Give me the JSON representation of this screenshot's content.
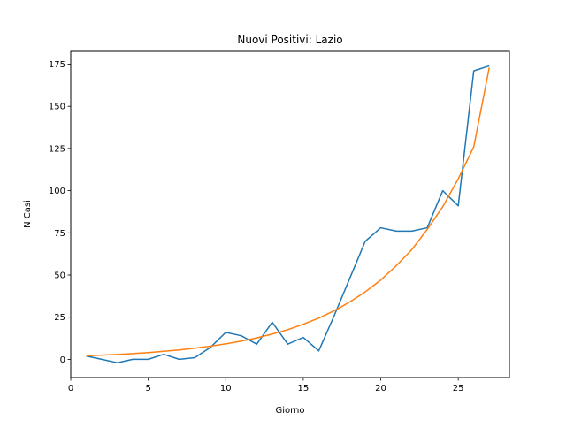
{
  "chart_data": {
    "type": "line",
    "title": "Nuovi Positivi: Lazio",
    "xlabel": "Giorno",
    "ylabel": "N Casi",
    "xlim": [
      0,
      28.3
    ],
    "ylim": [
      -10.8,
      182.6
    ],
    "xticks": [
      0,
      5,
      10,
      15,
      20,
      25
    ],
    "yticks": [
      0,
      25,
      50,
      75,
      100,
      125,
      150,
      175
    ],
    "grid": false,
    "legend": "none",
    "series": [
      {
        "color": "#1f77b4",
        "x": [
          1,
          2,
          3,
          4,
          5,
          6,
          7,
          8,
          9,
          10,
          11,
          12,
          13,
          14,
          15,
          16,
          17,
          18,
          19,
          20,
          21,
          22,
          23,
          24,
          25,
          26,
          27
        ],
        "y": [
          2,
          0,
          -2,
          0,
          0,
          3,
          0,
          1,
          7,
          16,
          14,
          9,
          22,
          9,
          13,
          5,
          26,
          48,
          70,
          78,
          76,
          76,
          78,
          100,
          91,
          171,
          174
        ]
      },
      {
        "color": "#ff7f0e",
        "x": [
          1,
          2,
          3,
          4,
          5,
          6,
          7,
          8,
          9,
          10,
          11,
          12,
          13,
          14,
          15,
          16,
          17,
          18,
          19,
          20,
          21,
          22,
          23,
          24,
          25,
          26,
          27
        ],
        "y": [
          2.1,
          2.5,
          2.9,
          3.4,
          4.0,
          4.8,
          5.6,
          6.6,
          7.8,
          9.2,
          10.8,
          12.7,
          15.0,
          17.6,
          20.8,
          24.5,
          28.8,
          34.0,
          40.0,
          47.0,
          55.5,
          65.0,
          77.0,
          90.5,
          107.0,
          126.0,
          173.0
        ]
      }
    ]
  }
}
